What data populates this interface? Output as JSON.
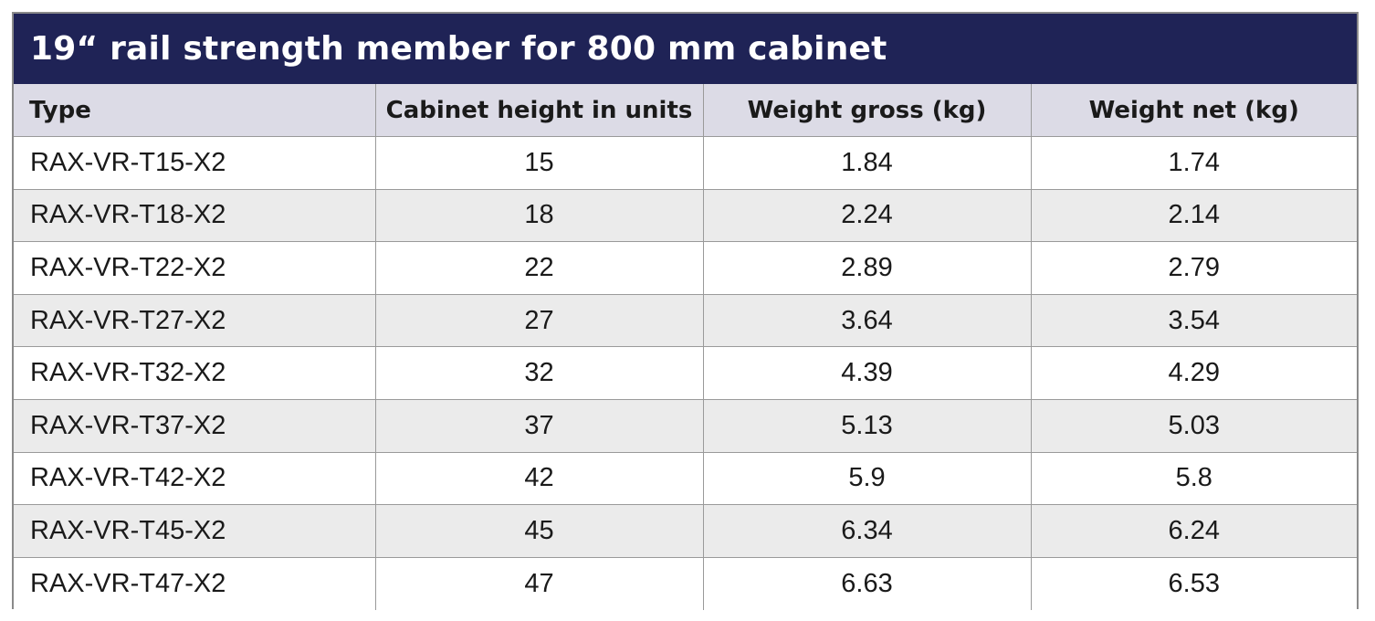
{
  "title": "19“ rail strength member for 800 mm cabinet",
  "headers": [
    "Type",
    "Cabinet height in units",
    "Weight gross (kg)",
    "Weight net (kg)"
  ],
  "rows": [
    [
      "RAX-VR-T15-X2",
      "15",
      "1.84",
      "1.74"
    ],
    [
      "RAX-VR-T18-X2",
      "18",
      "2.24",
      "2.14"
    ],
    [
      "RAX-VR-T22-X2",
      "22",
      "2.89",
      "2.79"
    ],
    [
      "RAX-VR-T27-X2",
      "27",
      "3.64",
      "3.54"
    ],
    [
      "RAX-VR-T32-X2",
      "32",
      "4.39",
      "4.29"
    ],
    [
      "RAX-VR-T37-X2",
      "37",
      "5.13",
      "5.03"
    ],
    [
      "RAX-VR-T42-X2",
      "42",
      "5.9",
      "5.8"
    ],
    [
      "RAX-VR-T45-X2",
      "45",
      "6.34",
      "6.24"
    ],
    [
      "RAX-VR-T47-X2",
      "47",
      "6.63",
      "6.53"
    ]
  ],
  "colors": {
    "title_background": "#1f2356",
    "title_text": "#ffffff",
    "header_background": "#dcdbe6",
    "row_alt_background": "#ebebeb",
    "border": "#9a9a9a"
  }
}
